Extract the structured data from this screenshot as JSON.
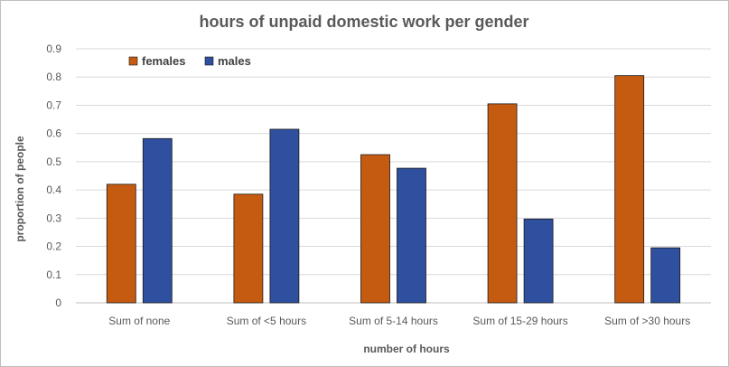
{
  "chart_data": {
    "type": "bar",
    "title": "hours of unpaid domestic work per gender",
    "xlabel": "number of hours",
    "ylabel": "proportion of people",
    "categories": [
      "Sum of none",
      "Sum of <5 hours",
      "Sum of 5-14 hours",
      "Sum of 15-29 hours",
      "Sum of >30 hours"
    ],
    "series": [
      {
        "name": "females",
        "color": "#C55A11",
        "values": [
          0.42,
          0.385,
          0.525,
          0.705,
          0.805
        ]
      },
      {
        "name": "males",
        "color": "#2F4F9F",
        "values": [
          0.582,
          0.615,
          0.477,
          0.297,
          0.195
        ]
      }
    ],
    "ylim": [
      0,
      0.9
    ],
    "yticks": [
      "0",
      "0.1",
      "0.2",
      "0.3",
      "0.4",
      "0.5",
      "0.6",
      "0.7",
      "0.8",
      "0.9"
    ],
    "grid": true,
    "legend_position": "top-left"
  }
}
